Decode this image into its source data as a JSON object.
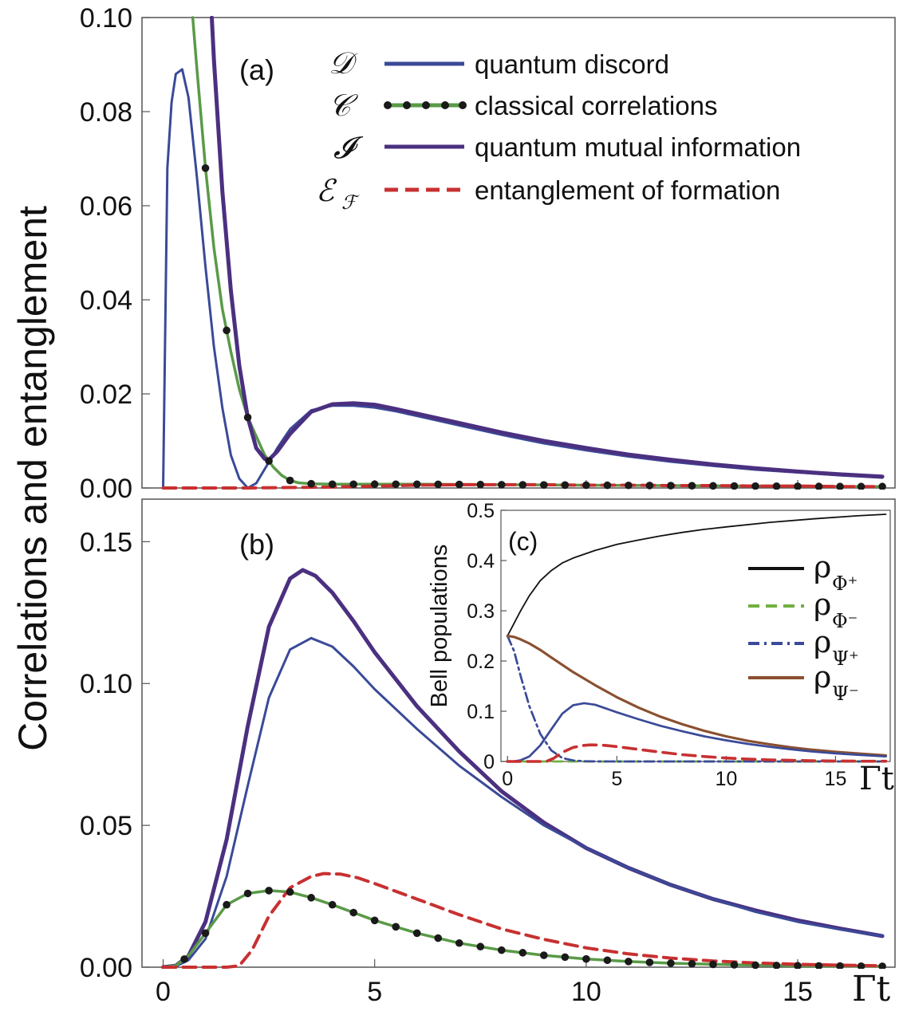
{
  "figure": {
    "ylabel": "Correlations and entanglement",
    "xaxis_label": "Γt",
    "colors": {
      "discord": "#3a4a98",
      "classical": "#5a9a48",
      "mutual": "#4b3080",
      "eof": "#c83030",
      "dot": "#1a1a1a",
      "phi_plus": "#111111",
      "phi_minus": "#70b040",
      "psi_plus": "#3a4a98",
      "psi_minus": "#8a5030"
    }
  },
  "chart_data": [
    {
      "panel": "(a)",
      "type": "line",
      "xlim": [
        -0.5,
        17.3
      ],
      "ylim": [
        0,
        0.1
      ],
      "x_ticks": [
        0,
        5,
        10,
        15
      ],
      "y_ticks": [
        "0.00",
        "0.02",
        "0.04",
        "0.06",
        "0.08",
        "0.10"
      ],
      "legend": [
        {
          "symbol": "𝒟",
          "label": "quantum discord",
          "style": "solid",
          "color": "#3a4a98"
        },
        {
          "symbol": "𝒞",
          "label": "classical correlations",
          "style": "dotted-solid",
          "color": "#5a9a48"
        },
        {
          "symbol": "𝓘",
          "label": "quantum mutual information",
          "style": "solid",
          "color": "#4b3080"
        },
        {
          "symbol": "ℰ",
          "symbol_sub": "ℱ",
          "label": "entanglement of formation",
          "style": "dashed",
          "color": "#c83030"
        }
      ],
      "series": [
        {
          "name": "quantum discord",
          "x": [
            0,
            0.1,
            0.2,
            0.3,
            0.45,
            0.6,
            0.8,
            1.0,
            1.2,
            1.4,
            1.6,
            1.8,
            2.0,
            2.2,
            2.4,
            2.7,
            3.0,
            3.5,
            4.0,
            4.5,
            5.0,
            5.5,
            6,
            7,
            8,
            9,
            10,
            11,
            12,
            13,
            14,
            15,
            16,
            17
          ],
          "y": [
            0,
            0.068,
            0.082,
            0.088,
            0.089,
            0.083,
            0.066,
            0.047,
            0.03,
            0.017,
            0.007,
            0.002,
            0.0,
            0.001,
            0.004,
            0.0085,
            0.0125,
            0.0165,
            0.0175,
            0.0175,
            0.0171,
            0.0163,
            0.0153,
            0.0133,
            0.0113,
            0.0095,
            0.008,
            0.0067,
            0.0056,
            0.0047,
            0.0039,
            0.0033,
            0.0027,
            0.0022
          ]
        },
        {
          "name": "classical correlations",
          "x": [
            0.7,
            0.8,
            1.0,
            1.2,
            1.4,
            1.6,
            1.8,
            2.0,
            2.2,
            2.4,
            2.6,
            2.8,
            3.0,
            3.2,
            3.5,
            4,
            5,
            6,
            8,
            10,
            12,
            14,
            16,
            17
          ],
          "y": [
            0.1,
            0.089,
            0.068,
            0.051,
            0.038,
            0.029,
            0.021,
            0.015,
            0.011,
            0.007,
            0.0045,
            0.0027,
            0.0016,
            0.0011,
            0.0009,
            0.0008,
            0.0008,
            0.0008,
            0.0007,
            0.0006,
            0.0005,
            0.0004,
            0.0003,
            0.0003
          ]
        },
        {
          "name": "quantum mutual information",
          "x": [
            1.15,
            1.2,
            1.4,
            1.6,
            1.8,
            2.0,
            2.2,
            2.4,
            2.5,
            2.7,
            3.0,
            3.5,
            4.0,
            4.5,
            5.0,
            5.5,
            6,
            7,
            8,
            9,
            10,
            11,
            12,
            13,
            14,
            15,
            16,
            17
          ],
          "y": [
            0.1,
            0.091,
            0.063,
            0.042,
            0.026,
            0.015,
            0.0085,
            0.0062,
            0.006,
            0.0078,
            0.0115,
            0.0162,
            0.0178,
            0.018,
            0.0177,
            0.0168,
            0.0158,
            0.0138,
            0.0118,
            0.01,
            0.0085,
            0.0071,
            0.006,
            0.005,
            0.0042,
            0.0035,
            0.0029,
            0.0024
          ]
        },
        {
          "name": "entanglement of formation",
          "x": [
            0,
            2,
            3,
            4,
            5,
            6,
            7,
            8,
            9,
            10,
            11,
            12,
            13,
            14,
            15,
            16,
            17
          ],
          "y": [
            0,
            0,
            0.0001,
            0.0002,
            0.0004,
            0.0006,
            0.0007,
            0.0007,
            0.0007,
            0.0006,
            0.0006,
            0.0005,
            0.0005,
            0.0004,
            0.0004,
            0.0003,
            0.0003
          ]
        }
      ],
      "dots": {
        "x_start": 1.0,
        "x_step": 0.5,
        "x_end": 17
      }
    },
    {
      "panel": "(b)",
      "type": "line",
      "xlim": [
        -0.5,
        17.3
      ],
      "ylim": [
        0,
        0.165
      ],
      "x_ticks": [
        0,
        5,
        10,
        15
      ],
      "y_ticks": [
        "0.00",
        "0.05",
        "0.10",
        "0.15"
      ],
      "series": [
        {
          "name": "quantum mutual information",
          "x": [
            0,
            0.3,
            0.6,
            1.0,
            1.5,
            2.0,
            2.5,
            3.0,
            3.3,
            3.6,
            4.0,
            4.5,
            5,
            6,
            7,
            8,
            9,
            10,
            11,
            12,
            13,
            14,
            15,
            16,
            17
          ],
          "y": [
            0,
            0.0005,
            0.004,
            0.016,
            0.045,
            0.085,
            0.12,
            0.137,
            0.14,
            0.138,
            0.132,
            0.122,
            0.111,
            0.092,
            0.076,
            0.062,
            0.051,
            0.042,
            0.035,
            0.029,
            0.024,
            0.02,
            0.0165,
            0.0136,
            0.011
          ]
        },
        {
          "name": "quantum discord",
          "x": [
            0,
            0.3,
            0.6,
            1.0,
            1.5,
            2.0,
            2.5,
            3.0,
            3.5,
            4.0,
            4.5,
            5,
            6,
            7,
            8,
            9,
            10,
            11,
            12,
            13,
            14,
            15,
            16,
            17
          ],
          "y": [
            0,
            0.0003,
            0.0025,
            0.01,
            0.032,
            0.064,
            0.095,
            0.112,
            0.116,
            0.113,
            0.106,
            0.098,
            0.084,
            0.071,
            0.06,
            0.05,
            0.042,
            0.035,
            0.029,
            0.024,
            0.0195,
            0.016,
            0.0133,
            0.011
          ]
        },
        {
          "name": "classical correlations",
          "x": [
            0,
            0.3,
            0.6,
            1.0,
            1.5,
            2.0,
            2.5,
            3.0,
            3.5,
            4,
            5,
            6,
            7,
            8,
            9,
            10,
            11,
            12,
            13,
            14,
            15,
            16,
            17
          ],
          "y": [
            0,
            0.0005,
            0.004,
            0.012,
            0.022,
            0.026,
            0.027,
            0.0265,
            0.0245,
            0.022,
            0.0165,
            0.012,
            0.0085,
            0.006,
            0.0042,
            0.0029,
            0.002,
            0.0014,
            0.001,
            0.0007,
            0.0005,
            0.0004,
            0.0003
          ]
        },
        {
          "name": "entanglement of formation",
          "x": [
            0,
            1.5,
            1.8,
            2.1,
            2.5,
            3.0,
            3.5,
            3.8,
            4.2,
            4.6,
            5.0,
            6,
            7,
            8,
            9,
            10,
            11,
            12,
            13,
            14,
            15,
            16,
            17
          ],
          "y": [
            0,
            0,
            0.0005,
            0.006,
            0.018,
            0.028,
            0.032,
            0.033,
            0.0328,
            0.0315,
            0.0295,
            0.024,
            0.0185,
            0.0135,
            0.0098,
            0.0068,
            0.0047,
            0.0032,
            0.0022,
            0.0015,
            0.001,
            0.0007,
            0.0005
          ]
        }
      ],
      "dots": {
        "x_start": 0.5,
        "x_step": 0.5,
        "x_end": 17
      }
    },
    {
      "panel": "(c)",
      "type": "line",
      "ylabel": "Bell populations",
      "xaxis_label": "Γt",
      "xlim": [
        -0.3,
        17.5
      ],
      "ylim": [
        0,
        0.5
      ],
      "x_ticks": [
        0,
        5,
        10,
        15
      ],
      "y_ticks": [
        "0",
        "0.1",
        "0.2",
        "0.3",
        "0.4",
        "0.5"
      ],
      "legend": [
        {
          "label": "ρ",
          "sub": "Φ⁺",
          "style": "solid",
          "color": "#111111"
        },
        {
          "label": "ρ",
          "sub": "Φ⁻",
          "style": "dashed",
          "color": "#70b040"
        },
        {
          "label": "ρ",
          "sub": "Ψ⁺",
          "style": "dashdot",
          "color": "#3a4a98"
        },
        {
          "label": "ρ",
          "sub": "Ψ⁻",
          "style": "solid",
          "color": "#8a5030"
        }
      ],
      "series": [
        {
          "name": "ρΦ+",
          "x": [
            0,
            0.3,
            0.6,
            1,
            1.5,
            2,
            2.5,
            3,
            4,
            5,
            6,
            7,
            8,
            9,
            10,
            12,
            14,
            16,
            17.3
          ],
          "y": [
            0.25,
            0.275,
            0.3,
            0.33,
            0.36,
            0.38,
            0.395,
            0.405,
            0.42,
            0.432,
            0.441,
            0.449,
            0.456,
            0.462,
            0.467,
            0.476,
            0.483,
            0.489,
            0.492
          ]
        },
        {
          "name": "ρΦ-",
          "x": [
            0,
            1,
            2,
            3,
            5,
            10,
            17.3
          ],
          "y": [
            0,
            0,
            0,
            0,
            0,
            0,
            0
          ]
        },
        {
          "name": "ρΨ+",
          "x": [
            0,
            0.3,
            0.6,
            1.0,
            1.5,
            2.0,
            2.5,
            3.0,
            3.5,
            4,
            5,
            17.3
          ],
          "y": [
            0.25,
            0.22,
            0.17,
            0.11,
            0.055,
            0.022,
            0.007,
            0.002,
            0.0005,
            0.0001,
            0,
            0
          ]
        },
        {
          "name": "ρΨ-",
          "x": [
            0,
            0.3,
            0.6,
            1,
            1.5,
            2,
            3,
            4,
            5,
            6,
            7,
            8,
            9,
            10,
            11,
            12,
            13,
            14,
            15,
            16,
            17.3
          ],
          "y": [
            0.25,
            0.248,
            0.243,
            0.235,
            0.222,
            0.207,
            0.178,
            0.152,
            0.128,
            0.107,
            0.089,
            0.074,
            0.061,
            0.05,
            0.041,
            0.034,
            0.028,
            0.023,
            0.019,
            0.016,
            0.012
          ]
        },
        {
          "name": "quantum discord",
          "x": [
            0,
            0.3,
            0.6,
            1.0,
            1.5,
            2.0,
            2.5,
            3.0,
            3.5,
            4.0,
            5,
            6,
            7,
            8,
            9,
            10,
            11,
            12,
            13,
            14,
            15,
            16,
            17.3
          ],
          "y": [
            0,
            0.0003,
            0.0025,
            0.01,
            0.032,
            0.064,
            0.095,
            0.112,
            0.116,
            0.113,
            0.098,
            0.084,
            0.071,
            0.06,
            0.05,
            0.042,
            0.035,
            0.029,
            0.024,
            0.0195,
            0.016,
            0.0133,
            0.01
          ]
        },
        {
          "name": "entanglement of formation",
          "x": [
            0,
            1.5,
            1.8,
            2.1,
            2.5,
            3.0,
            3.5,
            3.8,
            4.2,
            4.6,
            5.0,
            6,
            7,
            8,
            9,
            10,
            11,
            12,
            13,
            14,
            15,
            16,
            17.3
          ],
          "y": [
            0,
            0,
            0.0005,
            0.006,
            0.018,
            0.028,
            0.032,
            0.033,
            0.0328,
            0.0315,
            0.0295,
            0.024,
            0.0185,
            0.0135,
            0.0098,
            0.0068,
            0.0047,
            0.0032,
            0.0022,
            0.0015,
            0.001,
            0.0007,
            0.0005
          ]
        }
      ]
    }
  ]
}
